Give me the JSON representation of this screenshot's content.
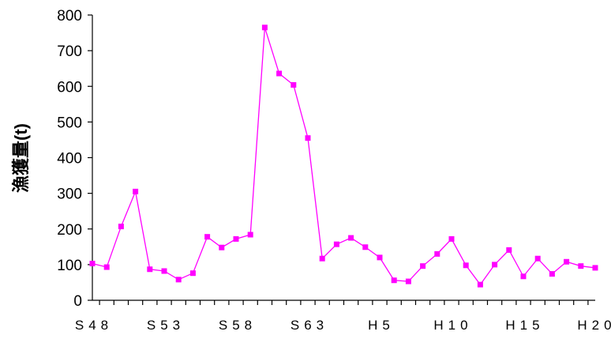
{
  "chart_data": {
    "type": "line",
    "title": "",
    "xlabel": "",
    "ylabel": "漁獲量(t)",
    "ylim": [
      0,
      800
    ],
    "yticks": [
      0,
      100,
      200,
      300,
      400,
      500,
      600,
      700,
      800
    ],
    "xticklabels": [
      "S48",
      "S53",
      "S58",
      "S63",
      "H5",
      "H10",
      "H15",
      "H20"
    ],
    "grid": false,
    "legend": "none",
    "x": [
      "S48",
      "S49",
      "S50",
      "S51",
      "S52",
      "S53",
      "S54",
      "S55",
      "S56",
      "S57",
      "S58",
      "S59",
      "S60",
      "S61",
      "S62",
      "S63",
      "H1",
      "H2",
      "H3",
      "H4",
      "H5",
      "H6",
      "H7",
      "H8",
      "H9",
      "H10",
      "H11",
      "H12",
      "H13",
      "H14",
      "H15",
      "H16",
      "H17",
      "H18",
      "H19",
      "H20"
    ],
    "series": [
      {
        "values": [
          103,
          93,
          207,
          305,
          87,
          82,
          58,
          76,
          178,
          148,
          172,
          184,
          765,
          636,
          604,
          455,
          117,
          157,
          175,
          149,
          120,
          56,
          53,
          96,
          130,
          172,
          98,
          44,
          100,
          141,
          67,
          117,
          74,
          108,
          96,
          91
        ],
        "color": "#ff00ff"
      }
    ]
  }
}
